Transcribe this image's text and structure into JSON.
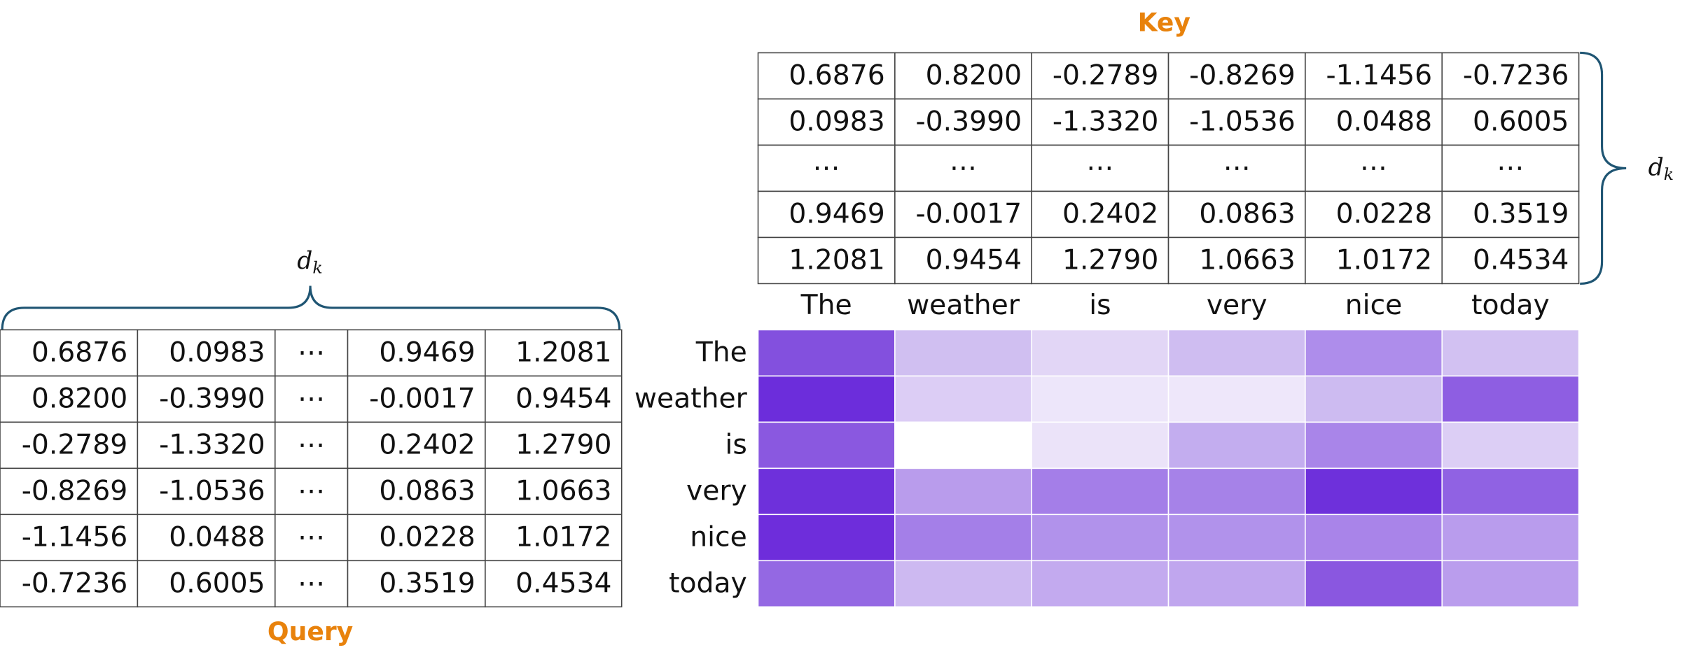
{
  "key": {
    "label": "Key",
    "dim": {
      "base": "d",
      "sub": "k"
    },
    "rows": [
      [
        "0.6876",
        "0.8200",
        "-0.2789",
        "-0.8269",
        "-1.1456",
        "-0.7236"
      ],
      [
        "0.0983",
        "-0.3990",
        "-1.3320",
        "-1.0536",
        "0.0488",
        "0.6005"
      ],
      [
        "⋯",
        "⋯",
        "⋯",
        "⋯",
        "⋯",
        "⋯"
      ],
      [
        "0.9469",
        "-0.0017",
        "0.2402",
        "0.0863",
        "0.0228",
        "0.3519"
      ],
      [
        "1.2081",
        "0.9454",
        "1.2790",
        "1.0663",
        "1.0172",
        "0.4534"
      ]
    ]
  },
  "query": {
    "label": "Query",
    "dim": {
      "base": "d",
      "sub": "k"
    },
    "rows": [
      [
        "0.6876",
        "0.0983",
        "⋯",
        "0.9469",
        "1.2081"
      ],
      [
        "0.8200",
        "-0.3990",
        "⋯",
        "-0.0017",
        "0.9454"
      ],
      [
        "-0.2789",
        "-1.3320",
        "⋯",
        "0.2402",
        "1.2790"
      ],
      [
        "-0.8269",
        "-1.0536",
        "⋯",
        "0.0863",
        "1.0663"
      ],
      [
        "-1.1456",
        "0.0488",
        "⋯",
        "0.0228",
        "1.0172"
      ],
      [
        "-0.7236",
        "0.6005",
        "⋯",
        "0.3519",
        "0.4534"
      ]
    ]
  },
  "heatmap": {
    "columns": [
      "The",
      "weather",
      "is",
      "very",
      "nice",
      "today"
    ],
    "rows": [
      "The",
      "weather",
      "is",
      "very",
      "nice",
      "today"
    ],
    "colors": [
      [
        "#8350de",
        "#d0bff1",
        "#e2d6f6",
        "#cfbdf1",
        "#ae8deb",
        "#d2c1f2"
      ],
      [
        "#6c2ddb",
        "#dccdf5",
        "#ede6fa",
        "#eee7fa",
        "#cdbbf1",
        "#8e5ee2"
      ],
      [
        "#8a58e0",
        "#ffffff",
        "#ebe3f9",
        "#c3adef",
        "#a985e9",
        "#dccef5"
      ],
      [
        "#6e30db",
        "#b99cec",
        "#a47ee8",
        "#a682e8",
        "#6e30db",
        "#9062e3"
      ],
      [
        "#6e2ddb",
        "#a47fe8",
        "#b192eb",
        "#b192eb",
        "#a984e9",
        "#b99ced"
      ],
      [
        "#9468e3",
        "#cdb9f1",
        "#c3aaef",
        "#c0a6ee",
        "#8a57e0",
        "#ba9ded"
      ]
    ]
  }
}
